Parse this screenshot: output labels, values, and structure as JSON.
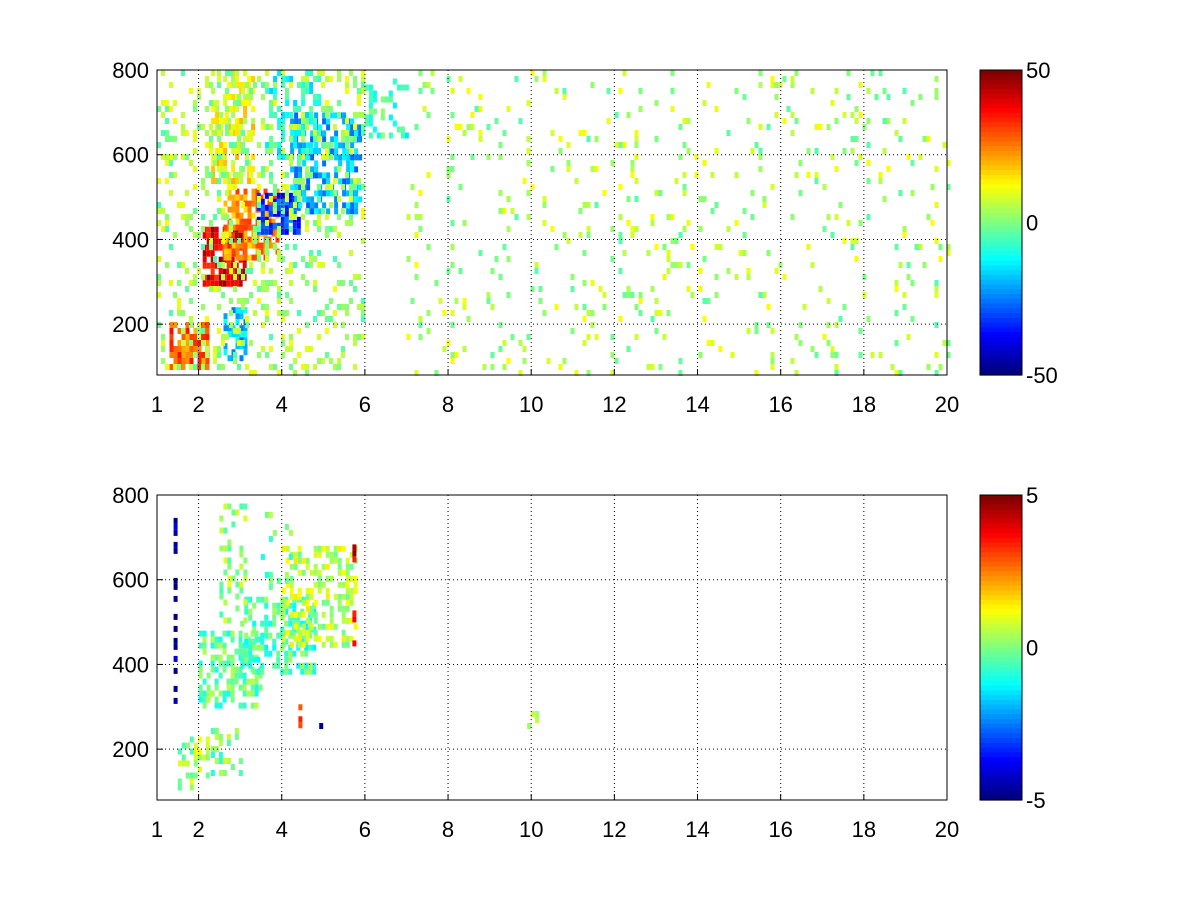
{
  "chart_data": [
    {
      "type": "heatmap",
      "title": "",
      "xlabel": "",
      "ylabel": "",
      "xlim": [
        1,
        20
      ],
      "ylim": [
        80,
        800
      ],
      "xticks": [
        1,
        2,
        4,
        6,
        8,
        10,
        12,
        14,
        16,
        18,
        20
      ],
      "yticks": [
        200,
        400,
        600,
        800
      ],
      "grid": true,
      "colormap": "jet",
      "colorbar": {
        "clim": [
          -50,
          50
        ],
        "ticks": [
          50,
          0,
          -50
        ],
        "position": "right"
      },
      "blobs": [
        {
          "x": [
            1.3,
            2.2
          ],
          "y": [
            95,
            205
          ],
          "value": 28,
          "density": 0.75
        },
        {
          "x": [
            2.1,
            3.1
          ],
          "y": [
            300,
            430
          ],
          "value": 40,
          "density": 0.85
        },
        {
          "x": [
            2.6,
            3.9
          ],
          "y": [
            360,
            520
          ],
          "value": 24,
          "density": 0.7
        },
        {
          "x": [
            2.3,
            3.3
          ],
          "y": [
            520,
            800
          ],
          "value": 12,
          "density": 0.5
        },
        {
          "x": [
            3.4,
            4.4
          ],
          "y": [
            420,
            510
          ],
          "value": -32,
          "density": 0.75
        },
        {
          "x": [
            4.2,
            5.9
          ],
          "y": [
            460,
            700
          ],
          "value": -20,
          "density": 0.6
        },
        {
          "x": [
            2.6,
            3.1
          ],
          "y": [
            120,
            240
          ],
          "value": -18,
          "density": 0.6
        },
        {
          "x": [
            3.6,
            5.0
          ],
          "y": [
            600,
            800
          ],
          "value": -10,
          "density": 0.35
        },
        {
          "x": [
            6.0,
            7.0
          ],
          "y": [
            650,
            780
          ],
          "value": -6,
          "density": 0.35
        },
        {
          "x": [
            1.0,
            6.0
          ],
          "y": [
            80,
            800
          ],
          "value": 3,
          "density": 0.2
        },
        {
          "x": [
            7.0,
            20.0
          ],
          "y": [
            80,
            800
          ],
          "value": 4,
          "density": 0.07
        }
      ]
    },
    {
      "type": "heatmap",
      "title": "",
      "xlabel": "",
      "ylabel": "",
      "xlim": [
        1,
        20
      ],
      "ylim": [
        80,
        800
      ],
      "xticks": [
        1,
        2,
        4,
        6,
        8,
        10,
        12,
        14,
        16,
        18,
        20
      ],
      "yticks": [
        200,
        400,
        600,
        800
      ],
      "grid": true,
      "colormap": "jet",
      "colorbar": {
        "clim": [
          -5,
          5
        ],
        "ticks": [
          5,
          0,
          -5
        ],
        "position": "right"
      },
      "blobs": [
        {
          "x": [
            1.5,
            2.2
          ],
          "y": [
            110,
            230
          ],
          "value": 0.3,
          "density": 0.45
        },
        {
          "x": [
            2.2,
            3.0
          ],
          "y": [
            140,
            250
          ],
          "value": 0.0,
          "density": 0.35
        },
        {
          "x": [
            2.0,
            3.5
          ],
          "y": [
            300,
            480
          ],
          "value": -0.3,
          "density": 0.5
        },
        {
          "x": [
            3.0,
            4.8
          ],
          "y": [
            380,
            560
          ],
          "value": -0.5,
          "density": 0.55
        },
        {
          "x": [
            2.5,
            3.1
          ],
          "y": [
            500,
            780
          ],
          "value": 0.2,
          "density": 0.25
        },
        {
          "x": [
            4.0,
            5.8
          ],
          "y": [
            450,
            680
          ],
          "value": 0.6,
          "density": 0.45
        },
        {
          "x": [
            3.5,
            4.2
          ],
          "y": [
            580,
            760
          ],
          "value": -0.2,
          "density": 0.2
        },
        {
          "x": [
            9.9,
            10.1
          ],
          "y": [
            250,
            290
          ],
          "value": 1.0,
          "density": 0.6
        },
        {
          "x": [
            1.4,
            1.45
          ],
          "y": [
            300,
            760
          ],
          "value": -4.5,
          "density": 0.5
        },
        {
          "x": [
            4.4,
            4.45
          ],
          "y": [
            240,
            320
          ],
          "value": 3.5,
          "density": 0.5
        },
        {
          "x": [
            4.9,
            4.95
          ],
          "y": [
            250,
            290
          ],
          "value": -4.0,
          "density": 0.5
        },
        {
          "x": [
            5.7,
            5.75
          ],
          "y": [
            420,
            740
          ],
          "value": 4.0,
          "density": 0.4
        }
      ]
    }
  ]
}
